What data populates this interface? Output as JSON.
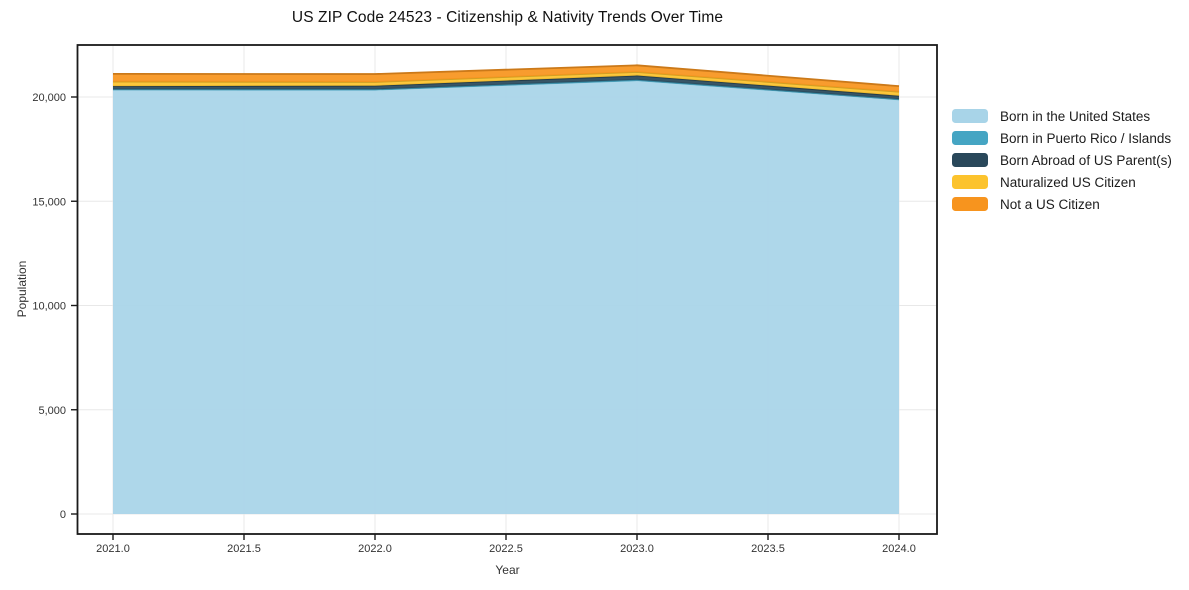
{
  "title": "US ZIP Code 24523 - Citizenship & Nativity Trends Over Time",
  "chart_data": {
    "type": "area",
    "stacked": true,
    "title": "US ZIP Code 24523 - Citizenship & Nativity Trends Over Time",
    "xlabel": "Year",
    "ylabel": "Population",
    "x": [
      2021,
      2022,
      2023,
      2024
    ],
    "series": [
      {
        "name": "Born in the United States",
        "color": "#A8D4E8",
        "values": [
          20320,
          20310,
          20760,
          19840
        ]
      },
      {
        "name": "Born in Puerto Rico / Islands",
        "color": "#45A5C3",
        "values": [
          50,
          60,
          70,
          60
        ]
      },
      {
        "name": "Born Abroad of US Parent(s)",
        "color": "#29485A",
        "values": [
          150,
          170,
          200,
          160
        ]
      },
      {
        "name": "Naturalized US Citizen",
        "color": "#FCC32D",
        "values": [
          220,
          180,
          170,
          190
        ]
      },
      {
        "name": "Not a US Citizen",
        "color": "#F7941E",
        "values": [
          370,
          380,
          320,
          270
        ]
      }
    ],
    "x_ticks": [
      2021.0,
      2021.5,
      2022.0,
      2022.5,
      2023.0,
      2023.5,
      2024.0
    ],
    "x_tick_labels": [
      "2021.0",
      "2021.5",
      "2022.0",
      "2022.5",
      "2023.0",
      "2023.5",
      "2024.0"
    ],
    "y_ticks": [
      0,
      5000,
      10000,
      15000,
      20000
    ],
    "y_tick_labels": [
      "0",
      "5,000",
      "10,000",
      "15,000",
      "20,000"
    ],
    "xlim": [
      2020.87,
      2024.15
    ],
    "ylim": [
      -960,
      22500
    ],
    "grid": true,
    "legend_position": "right"
  },
  "colors": {
    "background": "#ffffff",
    "gridline": "#e8e8e8",
    "axis_border": "#1a1a1a",
    "tick_text": "#333333"
  }
}
